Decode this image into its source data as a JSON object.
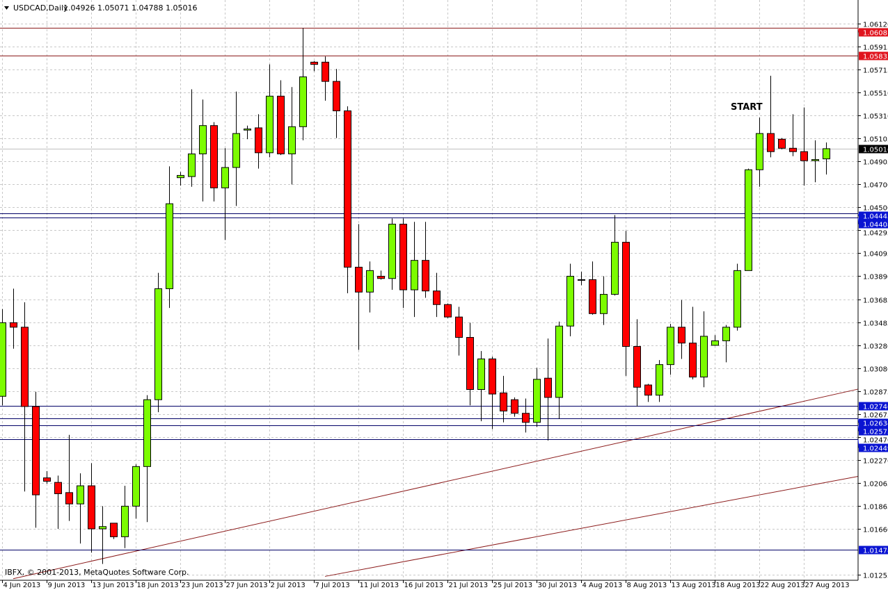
{
  "header": {
    "symbol_label": "USDCAD,Daily",
    "ohlc_readout": "1.04926 1.05071 1.04788 1.05016"
  },
  "footer": {
    "copyright": "IBFX, © 2001-2013, MetaQuotes Software Corp."
  },
  "annotations": [
    {
      "text": "START",
      "date": "22 Aug",
      "price": 1.0539
    }
  ],
  "colors": {
    "bull": "#7CFC00",
    "bear": "#FF0000",
    "candle_outline": "#000000",
    "resistance_line": "#8B1A1A",
    "resistance_label": "#E0141E",
    "support_line": "#000066",
    "support_label": "#0A14D2",
    "current_label": "#000000",
    "trendline": "#8B1A1A",
    "grid": "#C8C8C8"
  },
  "chart_data": {
    "type": "candlestick",
    "title": "USDCAD,Daily",
    "grid": true,
    "ylim": [
      1.012,
      1.0618
    ],
    "y_ticks": [
      "1.06120",
      "1.05915",
      "1.05715",
      "1.05510",
      "1.05310",
      "1.05105",
      "1.04905",
      "1.04700",
      "1.04500",
      "1.04295",
      "1.04095",
      "1.03890",
      "1.03685",
      "1.03485",
      "1.03280",
      "1.03080",
      "1.02875",
      "1.02675",
      "1.02470",
      "1.02270",
      "1.02065",
      "1.01865",
      "1.01660",
      "1.01255"
    ],
    "x_ticks": [
      "4 Jun 2013",
      "9 Jun 2013",
      "13 Jun 2013",
      "18 Jun 2013",
      "23 Jun 2013",
      "27 Jun 2013",
      "2 Jul 2013",
      "7 Jul 2013",
      "11 Jul 2013",
      "16 Jul 2013",
      "21 Jul 2013",
      "25 Jul 2013",
      "30 Jul 2013",
      "4 Aug 2013",
      "8 Aug 2013",
      "13 Aug 2013",
      "18 Aug 2013",
      "22 Aug 2013",
      "27 Aug 2013"
    ],
    "current_price": {
      "value": 1.05016,
      "label": "1.05016"
    },
    "levels": [
      {
        "price": 1.06081,
        "label": "1.06081",
        "kind": "resistance"
      },
      {
        "price": 1.05835,
        "label": "1.05835",
        "kind": "resistance"
      },
      {
        "price": 1.04443,
        "label": "1.04443",
        "kind": "support"
      },
      {
        "price": 1.04408,
        "label": "1.04408",
        "kind": "support"
      },
      {
        "price": 1.02746,
        "label": "1.02746",
        "kind": "support"
      },
      {
        "price": 1.02634,
        "label": "1.02634",
        "kind": "support"
      },
      {
        "price": 1.02573,
        "label": "1.02573",
        "kind": "support"
      },
      {
        "price": 1.02449,
        "label": "1.02449",
        "kind": "support"
      },
      {
        "price": 1.01478,
        "label": "1.01478",
        "kind": "support"
      }
    ],
    "trendlines": [
      {
        "from": {
          "date": "5 Jun",
          "price": 1.0122
        },
        "to": {
          "date": "29 Aug",
          "price": 1.0283
        }
      },
      {
        "from": {
          "date": "8 Jul",
          "price": 1.0124
        },
        "to": {
          "date": "29 Aug",
          "price": 1.0207
        }
      }
    ],
    "candles": [
      {
        "date": "4 Jun",
        "o": 1.0283,
        "h": 1.036,
        "l": 1.0275,
        "c": 1.0348
      },
      {
        "date": "5 Jun",
        "o": 1.0348,
        "h": 1.0378,
        "l": 1.0325,
        "c": 1.0344
      },
      {
        "date": "6 Jun",
        "o": 1.0344,
        "h": 1.0366,
        "l": 1.0199,
        "c": 1.0274
      },
      {
        "date": "7 Jun",
        "o": 1.0274,
        "h": 1.0287,
        "l": 1.0167,
        "c": 1.0196
      },
      {
        "date": "9 Jun",
        "o": 1.0211,
        "h": 1.0217,
        "l": 1.0206,
        "c": 1.0208
      },
      {
        "date": "10 Jun",
        "o": 1.0207,
        "h": 1.0213,
        "l": 1.0166,
        "c": 1.0197
      },
      {
        "date": "11 Jun",
        "o": 1.0198,
        "h": 1.0249,
        "l": 1.0173,
        "c": 1.0188
      },
      {
        "date": "12 Jun",
        "o": 1.0188,
        "h": 1.0215,
        "l": 1.0153,
        "c": 1.0204
      },
      {
        "date": "13 Jun",
        "o": 1.0204,
        "h": 1.0224,
        "l": 1.0145,
        "c": 1.0166
      },
      {
        "date": "14 Jun",
        "o": 1.0166,
        "h": 1.0186,
        "l": 1.0135,
        "c": 1.0168
      },
      {
        "date": "16 Jun",
        "o": 1.0171,
        "h": 1.0171,
        "l": 1.0157,
        "c": 1.0159
      },
      {
        "date": "17 Jun",
        "o": 1.0159,
        "h": 1.0204,
        "l": 1.0149,
        "c": 1.0186
      },
      {
        "date": "18 Jun",
        "o": 1.0186,
        "h": 1.0223,
        "l": 1.0175,
        "c": 1.0221
      },
      {
        "date": "19 Jun",
        "o": 1.0221,
        "h": 1.0284,
        "l": 1.0172,
        "c": 1.028
      },
      {
        "date": "20 Jun",
        "o": 1.028,
        "h": 1.0392,
        "l": 1.0269,
        "c": 1.0378
      },
      {
        "date": "21 Jun",
        "o": 1.0378,
        "h": 1.0486,
        "l": 1.0361,
        "c": 1.0453
      },
      {
        "date": "23 Jun",
        "o": 1.0476,
        "h": 1.0481,
        "l": 1.0469,
        "c": 1.0478
      },
      {
        "date": "24 Jun",
        "o": 1.0477,
        "h": 1.0554,
        "l": 1.0468,
        "c": 1.0497
      },
      {
        "date": "25 Jun",
        "o": 1.0497,
        "h": 1.0545,
        "l": 1.0455,
        "c": 1.0522
      },
      {
        "date": "26 Jun",
        "o": 1.0522,
        "h": 1.0525,
        "l": 1.0455,
        "c": 1.0467
      },
      {
        "date": "27 Jun",
        "o": 1.0467,
        "h": 1.0502,
        "l": 1.0421,
        "c": 1.0485
      },
      {
        "date": "28 Jun",
        "o": 1.0485,
        "h": 1.0552,
        "l": 1.0451,
        "c": 1.0515
      },
      {
        "date": "30 Jun",
        "o": 1.0518,
        "h": 1.0522,
        "l": 1.051,
        "c": 1.0519
      },
      {
        "date": "1 Jul",
        "o": 1.052,
        "h": 1.0532,
        "l": 1.0484,
        "c": 1.0498
      },
      {
        "date": "2 Jul",
        "o": 1.0498,
        "h": 1.0576,
        "l": 1.0494,
        "c": 1.0548
      },
      {
        "date": "3 Jul",
        "o": 1.0548,
        "h": 1.0562,
        "l": 1.0496,
        "c": 1.0497
      },
      {
        "date": "4 Jul",
        "o": 1.0497,
        "h": 1.0556,
        "l": 1.047,
        "c": 1.0521
      },
      {
        "date": "5 Jul",
        "o": 1.0521,
        "h": 1.0608,
        "l": 1.0509,
        "c": 1.0565
      },
      {
        "date": "7 Jul",
        "o": 1.0578,
        "h": 1.0579,
        "l": 1.057,
        "c": 1.0576
      },
      {
        "date": "8 Jul",
        "o": 1.0578,
        "h": 1.0583,
        "l": 1.0544,
        "c": 1.0561
      },
      {
        "date": "9 Jul",
        "o": 1.0561,
        "h": 1.0572,
        "l": 1.0511,
        "c": 1.0535
      },
      {
        "date": "10 Jul",
        "o": 1.0535,
        "h": 1.0539,
        "l": 1.0374,
        "c": 1.0397
      },
      {
        "date": "11 Jul",
        "o": 1.0397,
        "h": 1.0435,
        "l": 1.0324,
        "c": 1.0375
      },
      {
        "date": "12 Jul",
        "o": 1.0375,
        "h": 1.0402,
        "l": 1.0357,
        "c": 1.0394
      },
      {
        "date": "14 Jul",
        "o": 1.0389,
        "h": 1.0394,
        "l": 1.0386,
        "c": 1.0387
      },
      {
        "date": "15 Jul",
        "o": 1.0387,
        "h": 1.044,
        "l": 1.0377,
        "c": 1.0435
      },
      {
        "date": "16 Jul",
        "o": 1.0435,
        "h": 1.044,
        "l": 1.0361,
        "c": 1.0377
      },
      {
        "date": "17 Jul",
        "o": 1.0377,
        "h": 1.0437,
        "l": 1.0353,
        "c": 1.0403
      },
      {
        "date": "18 Jul",
        "o": 1.0403,
        "h": 1.0437,
        "l": 1.037,
        "c": 1.0376
      },
      {
        "date": "19 Jul",
        "o": 1.0376,
        "h": 1.0392,
        "l": 1.0353,
        "c": 1.0364
      },
      {
        "date": "21 Jul",
        "o": 1.0364,
        "h": 1.0365,
        "l": 1.0352,
        "c": 1.0353
      },
      {
        "date": "22 Jul",
        "o": 1.0353,
        "h": 1.0362,
        "l": 1.0319,
        "c": 1.0335
      },
      {
        "date": "23 Jul",
        "o": 1.0335,
        "h": 1.0348,
        "l": 1.0275,
        "c": 1.0289
      },
      {
        "date": "24 Jul",
        "o": 1.0289,
        "h": 1.0323,
        "l": 1.0261,
        "c": 1.0316
      },
      {
        "date": "25 Jul",
        "o": 1.0316,
        "h": 1.0318,
        "l": 1.0254,
        "c": 1.0285
      },
      {
        "date": "26 Jul",
        "o": 1.0286,
        "h": 1.0301,
        "l": 1.026,
        "c": 1.027
      },
      {
        "date": "28 Jul",
        "o": 1.028,
        "h": 1.0282,
        "l": 1.0265,
        "c": 1.0268
      },
      {
        "date": "29 Jul",
        "o": 1.0268,
        "h": 1.0281,
        "l": 1.0251,
        "c": 1.026
      },
      {
        "date": "30 Jul",
        "o": 1.026,
        "h": 1.0308,
        "l": 1.0256,
        "c": 1.0298
      },
      {
        "date": "31 Jul",
        "o": 1.0299,
        "h": 1.0334,
        "l": 1.0244,
        "c": 1.0282
      },
      {
        "date": "1 Aug",
        "o": 1.0282,
        "h": 1.0349,
        "l": 1.0263,
        "c": 1.0345
      },
      {
        "date": "2 Aug",
        "o": 1.0345,
        "h": 1.04,
        "l": 1.0336,
        "c": 1.0389
      },
      {
        "date": "4 Aug",
        "o": 1.0386,
        "h": 1.0393,
        "l": 1.0381,
        "c": 1.0386
      },
      {
        "date": "5 Aug",
        "o": 1.0386,
        "h": 1.0402,
        "l": 1.0355,
        "c": 1.0356
      },
      {
        "date": "6 Aug",
        "o": 1.0356,
        "h": 1.0389,
        "l": 1.0346,
        "c": 1.0373
      },
      {
        "date": "7 Aug",
        "o": 1.0373,
        "h": 1.0443,
        "l": 1.0372,
        "c": 1.0419
      },
      {
        "date": "8 Aug",
        "o": 1.0419,
        "h": 1.0429,
        "l": 1.0301,
        "c": 1.0327
      },
      {
        "date": "9 Aug",
        "o": 1.0327,
        "h": 1.0351,
        "l": 1.0274,
        "c": 1.0291
      },
      {
        "date": "11 Aug",
        "o": 1.0293,
        "h": 1.0294,
        "l": 1.0278,
        "c": 1.0284
      },
      {
        "date": "12 Aug",
        "o": 1.0284,
        "h": 1.0315,
        "l": 1.0278,
        "c": 1.0311
      },
      {
        "date": "13 Aug",
        "o": 1.0311,
        "h": 1.0347,
        "l": 1.0302,
        "c": 1.0344
      },
      {
        "date": "14 Aug",
        "o": 1.0344,
        "h": 1.0368,
        "l": 1.0316,
        "c": 1.033
      },
      {
        "date": "15 Aug",
        "o": 1.033,
        "h": 1.0362,
        "l": 1.0298,
        "c": 1.03
      },
      {
        "date": "16 Aug",
        "o": 1.03,
        "h": 1.0358,
        "l": 1.0291,
        "c": 1.0336
      },
      {
        "date": "18 Aug",
        "o": 1.0328,
        "h": 1.0337,
        "l": 1.0328,
        "c": 1.0332
      },
      {
        "date": "19 Aug",
        "o": 1.0332,
        "h": 1.0346,
        "l": 1.0313,
        "c": 1.0344
      },
      {
        "date": "20 Aug",
        "o": 1.0344,
        "h": 1.04,
        "l": 1.0341,
        "c": 1.0394
      },
      {
        "date": "21 Aug",
        "o": 1.0394,
        "h": 1.0484,
        "l": 1.0394,
        "c": 1.0483
      },
      {
        "date": "22 Aug",
        "o": 1.0483,
        "h": 1.0529,
        "l": 1.0468,
        "c": 1.0515
      },
      {
        "date": "23 Aug",
        "o": 1.0515,
        "h": 1.0566,
        "l": 1.0494,
        "c": 1.0499
      },
      {
        "date": "25 Aug",
        "o": 1.051,
        "h": 1.0511,
        "l": 1.0501,
        "c": 1.0502
      },
      {
        "date": "26 Aug",
        "o": 1.0502,
        "h": 1.0532,
        "l": 1.0495,
        "c": 1.0499
      },
      {
        "date": "27 Aug",
        "o": 1.0499,
        "h": 1.0538,
        "l": 1.0469,
        "c": 1.0491
      },
      {
        "date": "28 Aug",
        "o": 1.0491,
        "h": 1.0509,
        "l": 1.0472,
        "c": 1.0492
      },
      {
        "date": "29 Aug",
        "o": 1.04926,
        "h": 1.05071,
        "l": 1.04788,
        "c": 1.05016
      }
    ]
  }
}
